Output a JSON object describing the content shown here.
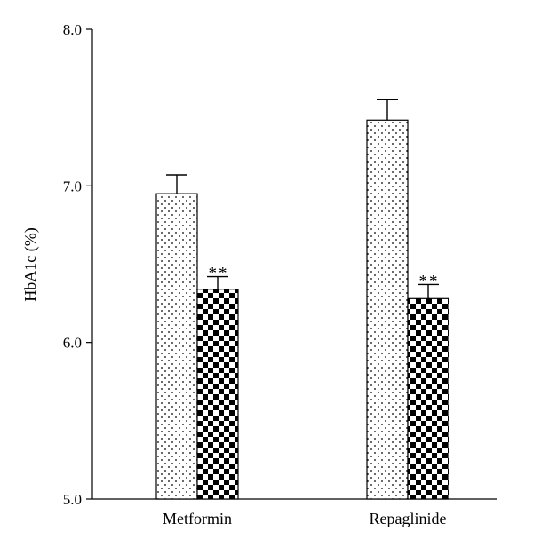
{
  "chart_data": {
    "type": "bar",
    "categories": [
      "Metformin",
      "Repaglinide"
    ],
    "series": [
      {
        "values": [
          6.95,
          7.42
        ],
        "errors": [
          0.12,
          0.13
        ],
        "pattern": "dots"
      },
      {
        "values": [
          6.34,
          6.28
        ],
        "errors": [
          0.08,
          0.09
        ],
        "pattern": "checker"
      }
    ],
    "annotations": [
      {
        "category": 0,
        "series": 1,
        "text": "**"
      },
      {
        "category": 1,
        "series": 1,
        "text": "**"
      }
    ],
    "ylabel": "HbA1c (%)",
    "ylim": [
      5.0,
      8.0
    ],
    "yticks": [
      "5.0",
      "6.0",
      "7.0",
      "8.0"
    ],
    "grid": false,
    "colors": {
      "bar_fill": "#ffffff",
      "pattern": "#000000",
      "axis": "#000000"
    }
  }
}
